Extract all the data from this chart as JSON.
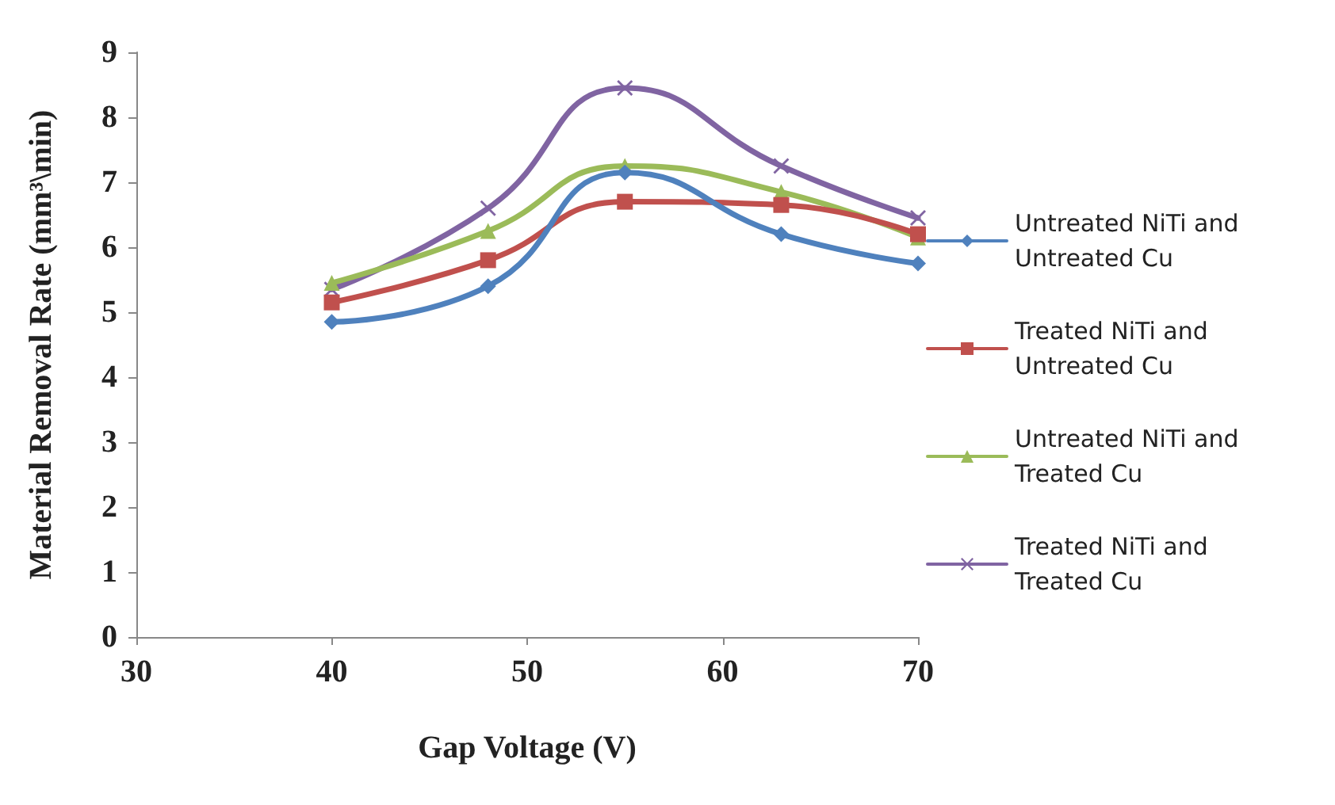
{
  "chart_data": {
    "type": "line",
    "xlabel": "Gap Voltage (V)",
    "ylabel": "Material Removal Rate (mm³\\min)",
    "x": [
      40,
      48,
      55,
      63,
      70
    ],
    "xlim": [
      30,
      70
    ],
    "xticks": [
      30,
      40,
      50,
      60,
      70
    ],
    "ylim": [
      0,
      9
    ],
    "yticks": [
      0,
      1,
      2,
      3,
      4,
      5,
      6,
      7,
      8,
      9
    ],
    "grid": false,
    "legend": "right",
    "series": [
      {
        "name": "Untreated NiTi and Untreated Cu",
        "color": "#4f81bd",
        "marker": "diamond",
        "values": [
          4.85,
          5.4,
          7.15,
          6.2,
          5.75
        ]
      },
      {
        "name": "Treated NiTi and Untreated Cu",
        "color": "#c0504d",
        "marker": "square",
        "values": [
          5.15,
          5.8,
          6.7,
          6.65,
          6.2
        ]
      },
      {
        "name": "Untreated NiTi and Treated Cu",
        "color": "#9bbb59",
        "marker": "triangle",
        "values": [
          5.45,
          6.25,
          7.25,
          6.85,
          6.15
        ]
      },
      {
        "name": "Treated NiTi and Treated Cu",
        "color": "#8064a2",
        "marker": "cross",
        "values": [
          5.35,
          6.6,
          8.45,
          7.25,
          6.45
        ]
      }
    ]
  }
}
